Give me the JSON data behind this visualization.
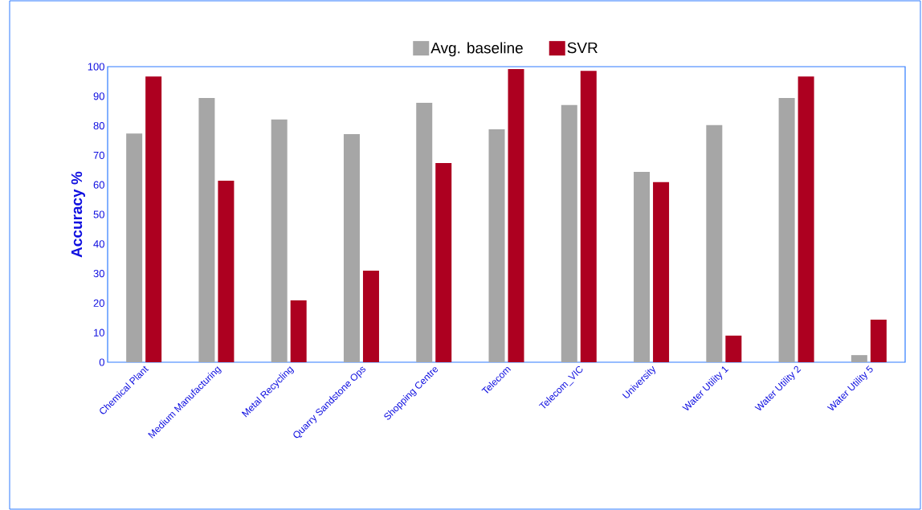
{
  "chart_data": {
    "type": "bar",
    "ylabel": "Accuracy %",
    "categories": [
      "Chemical Plant",
      "Medium Manufacturing",
      "Metal Recycling",
      "Quarry Sandstone Ops",
      "Shopping Centre",
      "Telecom",
      "Telecom_VIC",
      "University",
      "Water Utility 1",
      "Water Utility 2",
      "Water Utility 5"
    ],
    "series": [
      {
        "name": "Avg. baseline",
        "color": "#a6a6a6",
        "values": [
          77.4,
          89.4,
          82.1,
          77.2,
          87.8,
          78.8,
          87.0,
          64.4,
          80.2,
          89.4,
          2.4
        ]
      },
      {
        "name": "SVR",
        "color": "#ad0020",
        "values": [
          96.7,
          61.4,
          20.9,
          31.0,
          67.4,
          99.2,
          98.6,
          60.9,
          9.0,
          96.7,
          14.4
        ]
      }
    ],
    "ylim": [
      0,
      100
    ],
    "yticks": [
      0,
      10,
      20,
      30,
      40,
      50,
      60,
      70,
      80,
      90,
      100
    ],
    "grid": false,
    "legend": "top"
  }
}
